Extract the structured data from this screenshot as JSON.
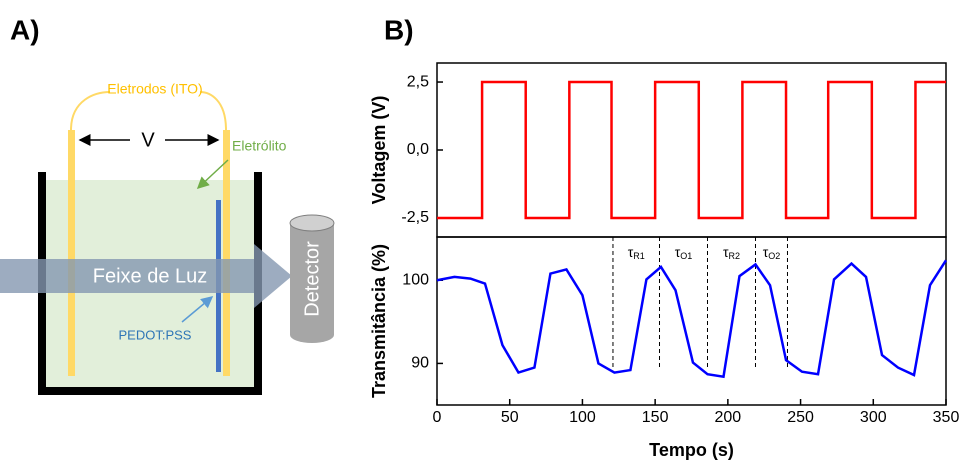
{
  "panel_labels": [
    "A)",
    "B)"
  ],
  "diagram": {
    "electrodes_label": "Eletrodos (ITO)",
    "voltage_label": "V",
    "electrolyte_label": "Eletrólito",
    "beam_label": "Feixe de Luz",
    "film_label": "PEDOT:PSS",
    "detector_label": "Detector"
  },
  "chart_data": [
    {
      "type": "line",
      "ylabel": "Voltagem (V)",
      "color": "#ff0000",
      "x": [
        0,
        31,
        31,
        61,
        61,
        91,
        91,
        120,
        120,
        150,
        150,
        180,
        180,
        210,
        210,
        240,
        240,
        269,
        269,
        299,
        299,
        329,
        329,
        350
      ],
      "values": [
        -2.5,
        -2.5,
        2.5,
        2.5,
        -2.5,
        -2.5,
        2.5,
        2.5,
        -2.5,
        -2.5,
        2.5,
        2.5,
        -2.5,
        -2.5,
        2.5,
        2.5,
        -2.5,
        -2.5,
        2.5,
        2.5,
        -2.5,
        -2.5,
        2.5,
        2.5
      ],
      "xlim": [
        0,
        350
      ],
      "ylim": [
        -3.2,
        3.2
      ],
      "yticks": [
        {
          "value": -2.5,
          "label": "-2,5"
        },
        {
          "value": 0,
          "label": "0,0"
        },
        {
          "value": 2.5,
          "label": "2,5"
        }
      ]
    },
    {
      "type": "line",
      "ylabel": "Transmitância (%)",
      "xlabel": "Tempo (s)",
      "color": "#0000ff",
      "x": [
        0,
        12,
        23,
        33,
        45,
        56,
        67,
        78,
        89,
        100,
        111,
        122,
        133,
        144,
        154,
        164,
        176,
        186,
        197,
        208,
        219,
        229,
        240,
        251,
        262,
        273,
        285,
        295,
        306,
        317,
        328,
        339,
        350
      ],
      "values": [
        100,
        100.4,
        100.2,
        99.6,
        92.2,
        88.9,
        89.5,
        100.8,
        101.3,
        98.2,
        90,
        88.9,
        89.2,
        100.1,
        101.6,
        98.8,
        90.1,
        88.7,
        88.4,
        100.5,
        101.9,
        99.4,
        90.4,
        89.0,
        88.7,
        100.1,
        102.0,
        100.4,
        91.0,
        89.5,
        88.6,
        99.4,
        102.4
      ],
      "xlim": [
        0,
        350
      ],
      "ylim": [
        85,
        105.2
      ],
      "xticks": [
        0,
        50,
        100,
        150,
        200,
        250,
        300,
        350
      ],
      "yticks": [
        90,
        100
      ],
      "vlines": [
        121,
        153,
        186,
        219,
        241
      ],
      "annotations": [
        {
          "symbol": "τ",
          "subscript": "R1"
        },
        {
          "symbol": "τ",
          "subscript": "O1"
        },
        {
          "symbol": "τ",
          "subscript": "R2"
        },
        {
          "symbol": "τ",
          "subscript": "O2"
        }
      ]
    }
  ]
}
